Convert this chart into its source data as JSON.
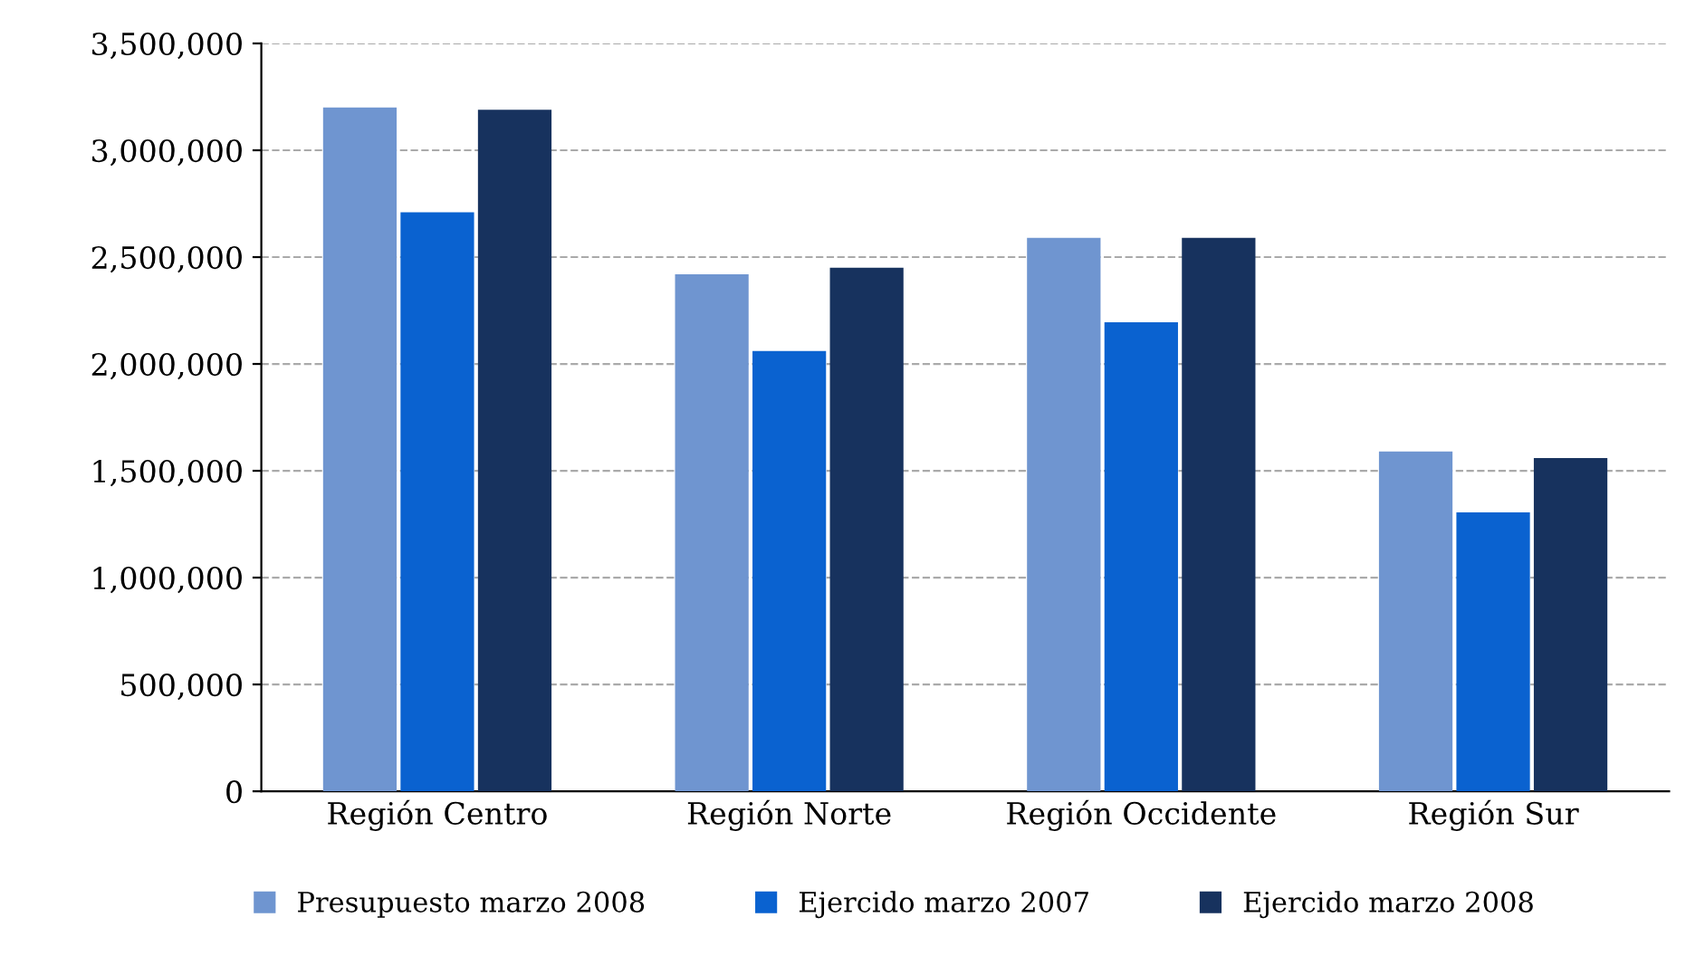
{
  "chart_data": {
    "type": "bar",
    "categories": [
      "Región Centro",
      "Región Norte",
      "Región Occidente",
      "Región Sur"
    ],
    "series": [
      {
        "name": "Presupuesto marzo 2008",
        "color": "#6f95d0",
        "values": [
          3200000,
          2420000,
          2590000,
          1590000
        ]
      },
      {
        "name": "Ejercido marzo 2007",
        "color": "#0a62d0",
        "values": [
          2710000,
          2060000,
          2195000,
          1305000
        ]
      },
      {
        "name": "Ejercido marzo 2008",
        "color": "#17325e",
        "values": [
          3190000,
          2450000,
          2590000,
          1560000
        ]
      }
    ],
    "ylim": [
      0,
      3500000
    ],
    "yticks": [
      {
        "value": 0,
        "label": "0"
      },
      {
        "value": 500000,
        "label": "500,000"
      },
      {
        "value": 1000000,
        "label": "1,000,000"
      },
      {
        "value": 1500000,
        "label": "1,500,000"
      },
      {
        "value": 2000000,
        "label": "2,000,000"
      },
      {
        "value": 2500000,
        "label": "2,500,000"
      },
      {
        "value": 3000000,
        "label": "3,000,000"
      },
      {
        "value": 3500000,
        "label": "3,500,000"
      }
    ],
    "grid": "y",
    "legend": "bottom"
  }
}
